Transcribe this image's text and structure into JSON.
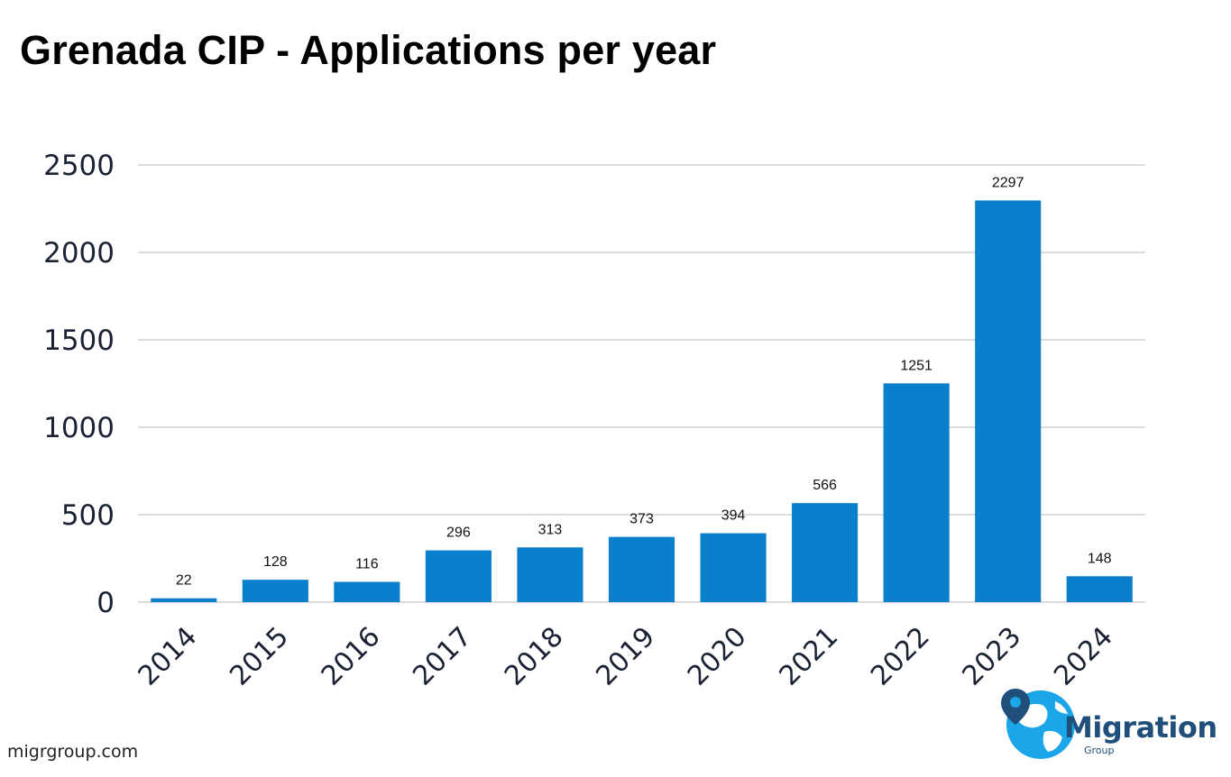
{
  "title": "Grenada CIP - Applications per year",
  "source": "migrgroup.com",
  "logo": {
    "name": "Migration",
    "sub": "Group"
  },
  "colors": {
    "bar": "#0a7fcc",
    "grid": "#d0d0d0",
    "logo_blue": "#1f4f7a",
    "logo_globe": "#1aa6e8"
  },
  "chart_data": {
    "type": "bar",
    "title": "Grenada CIP - Applications per year",
    "xlabel": "",
    "ylabel": "",
    "categories": [
      "2014",
      "2015",
      "2016",
      "2017",
      "2018",
      "2019",
      "2020",
      "2021",
      "2022",
      "2023",
      "2024"
    ],
    "values": [
      22,
      128,
      116,
      296,
      313,
      373,
      394,
      566,
      1251,
      2297,
      148
    ],
    "ylim": [
      0,
      2500
    ],
    "yticks": [
      0,
      500,
      1000,
      1500,
      2000,
      2500
    ],
    "grid": true,
    "data_labels": true,
    "legend": "none"
  }
}
